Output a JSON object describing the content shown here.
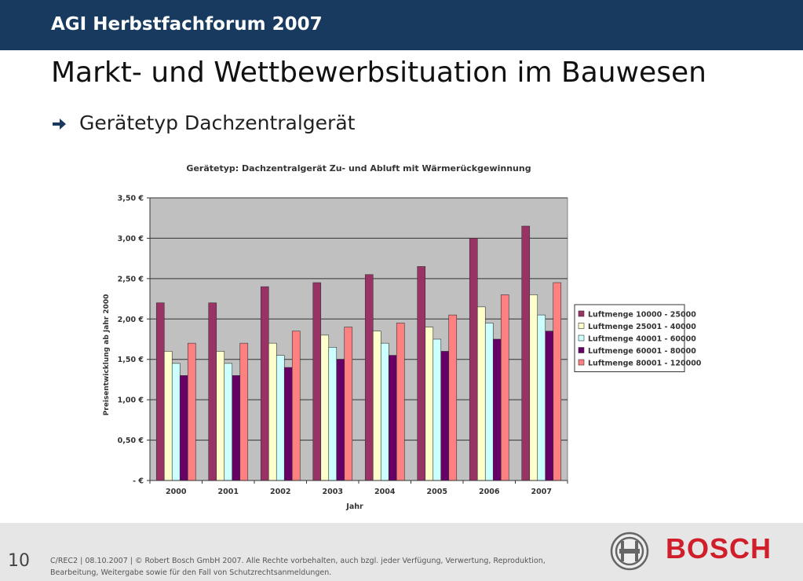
{
  "header": {
    "title": "AGI Herbstfachforum 2007"
  },
  "slide": {
    "title": "Markt- und Wettbewerbsituation im Bauwesen",
    "bullet": "Gerätetyp Dachzentralgerät",
    "bullet_icon": "arrow-right-icon"
  },
  "chart_data": {
    "type": "bar",
    "title": "Gerätetyp: Dachzentralgerät Zu- und Abluft mit Wärmerückgewinnung",
    "xlabel": "Jahr",
    "ylabel": "Preisentwicklung ab Jahr 2000",
    "ylim": [
      0,
      3.5
    ],
    "yticks": [
      0,
      0.5,
      1.0,
      1.5,
      2.0,
      2.5,
      3.0,
      3.5
    ],
    "ytick_labels": [
      "-   €",
      "0,50 €",
      "1,00 €",
      "1,50 €",
      "2,00 €",
      "2,50 €",
      "3,00 €",
      "3,50 €"
    ],
    "grid": true,
    "legend_position": "right",
    "categories": [
      "2000",
      "2001",
      "2002",
      "2003",
      "2004",
      "2005",
      "2006",
      "2007"
    ],
    "series": [
      {
        "name": "Luftmenge 10000 - 25000",
        "color": "#993366",
        "values": [
          2.2,
          2.2,
          2.4,
          2.45,
          2.55,
          2.65,
          3.0,
          3.15
        ]
      },
      {
        "name": "Luftmenge 25001 - 40000",
        "color": "#ffffcc",
        "values": [
          1.6,
          1.6,
          1.7,
          1.8,
          1.85,
          1.9,
          2.15,
          2.3
        ]
      },
      {
        "name": "Luftmenge 40001 - 60000",
        "color": "#ccffff",
        "values": [
          1.45,
          1.45,
          1.55,
          1.65,
          1.7,
          1.75,
          1.95,
          2.05
        ]
      },
      {
        "name": "Luftmenge 60001 - 80000",
        "color": "#660066",
        "values": [
          1.3,
          1.3,
          1.4,
          1.5,
          1.55,
          1.6,
          1.75,
          1.85
        ]
      },
      {
        "name": "Luftmenge 80001 - 120000",
        "color": "#ff8080",
        "values": [
          1.7,
          1.7,
          1.85,
          1.9,
          1.95,
          2.05,
          2.3,
          2.45
        ]
      }
    ]
  },
  "footer": {
    "page_number": "10",
    "line1": "C/REC2 | 08.10.2007 | © Robert Bosch GmbH 2007. Alle Rechte vorbehalten, auch bzgl. jeder Verfügung, Verwertung, Reproduktion,",
    "line2": "Bearbeitung, Weitergabe sowie für den Fall von Schutzrechtsanmeldungen.",
    "brand": "BOSCH",
    "brand_color": "#d01e2a",
    "emblem_icon": "bosch-armature-icon"
  }
}
